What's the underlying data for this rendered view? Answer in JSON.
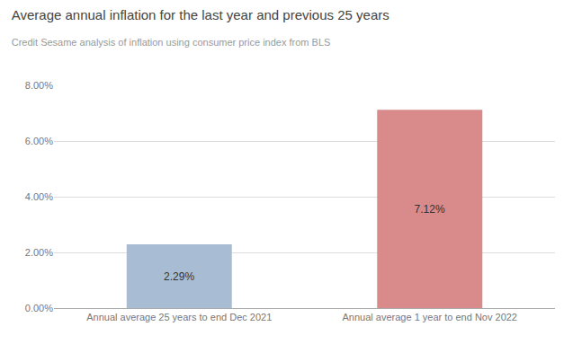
{
  "chart_data": {
    "type": "bar",
    "title": "Average annual inflation for the last year and previous 25 years",
    "subtitle": "Credit Sesame analysis of inflation using consumer price index from BLS",
    "categories": [
      "Annual average 25 years to end Dec 2021",
      "Annual average 1 year to end Nov 2022"
    ],
    "values": [
      2.29,
      7.12
    ],
    "value_labels": [
      "2.29%",
      "7.12%"
    ],
    "data_labels": true,
    "colors": [
      "#a8bdd4",
      "#d98a8a"
    ],
    "ylim": [
      0,
      8.0
    ],
    "yticks": [
      {
        "value": 0.0,
        "label": "0.00%"
      },
      {
        "value": 2.0,
        "label": "2.00%"
      },
      {
        "value": 4.0,
        "label": "4.00%"
      },
      {
        "value": 6.0,
        "label": "6.00%"
      },
      {
        "value": 8.0,
        "label": "8.00%"
      }
    ],
    "grid": true
  }
}
